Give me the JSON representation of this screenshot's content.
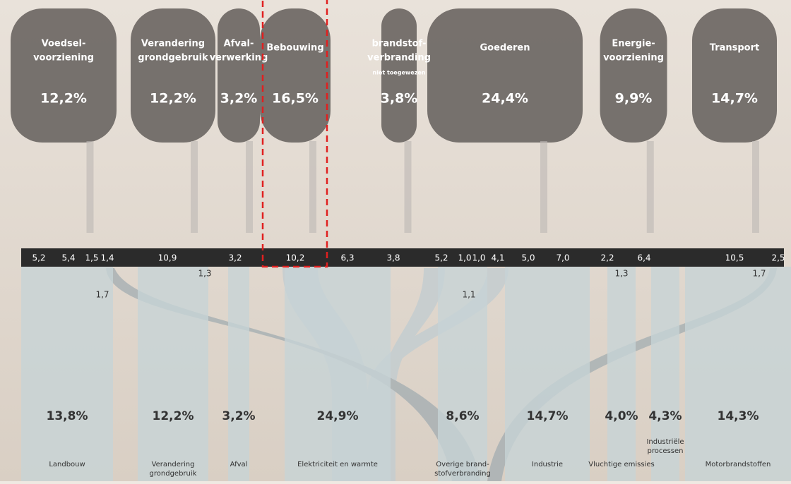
{
  "sectors": [
    {
      "label": [
        "Voedsel-",
        "voorziening"
      ],
      "share": "12,2%"
    },
    {
      "label": [
        "Verandering",
        "grondgebruik"
      ],
      "share": "12,2%"
    },
    {
      "label": [
        "Afval-",
        "verwerking"
      ],
      "share": "3,2%"
    },
    {
      "label": [
        "Bebouwing"
      ],
      "share": "16,5%"
    },
    {
      "label": [
        "brandstof-",
        "verbranding"
      ],
      "note": "niet toegewezen",
      "share": "3,8%"
    },
    {
      "label": [
        "Goederen"
      ],
      "share": "24,4%"
    },
    {
      "label": [
        "Energie-",
        "voorziening"
      ],
      "share": "9,9%"
    },
    {
      "label": [
        "Transport"
      ],
      "share": "14,7%"
    }
  ],
  "bar_values": [
    "5,2",
    "5,4",
    "1,5",
    "1,4",
    "10,9",
    "3,2",
    "10,2",
    "6,3",
    "3,8",
    "5,2",
    "1,0",
    "1,0",
    "4,1",
    "5,0",
    "7,0",
    "2,2",
    "6,4",
    "10,5",
    "2,5"
  ],
  "small_values": [
    "1,7",
    "1,3",
    "1,1",
    "1,3",
    "1,7"
  ],
  "destinations": [
    {
      "share": "13,8%",
      "label": [
        "Landbouw"
      ]
    },
    {
      "share": "12,2%",
      "label": [
        "Verandering",
        "grondgebruik"
      ]
    },
    {
      "share": "3,2%",
      "label": [
        "Afval"
      ]
    },
    {
      "share": "24,9%",
      "label": [
        "Elektriciteit en warmte"
      ]
    },
    {
      "share": "8,6%",
      "label": [
        "Overige brand-",
        "stofverbranding"
      ]
    },
    {
      "share": "14,7%",
      "label": [
        "Industrie"
      ]
    },
    {
      "share": "4,0%",
      "label": [
        "Vluchtige emissies"
      ]
    },
    {
      "share": "4,3%",
      "label": [
        "Industriële",
        "processen"
      ]
    },
    {
      "share": "14,3%",
      "label": [
        "Motorbrandstoffen"
      ]
    }
  ]
}
